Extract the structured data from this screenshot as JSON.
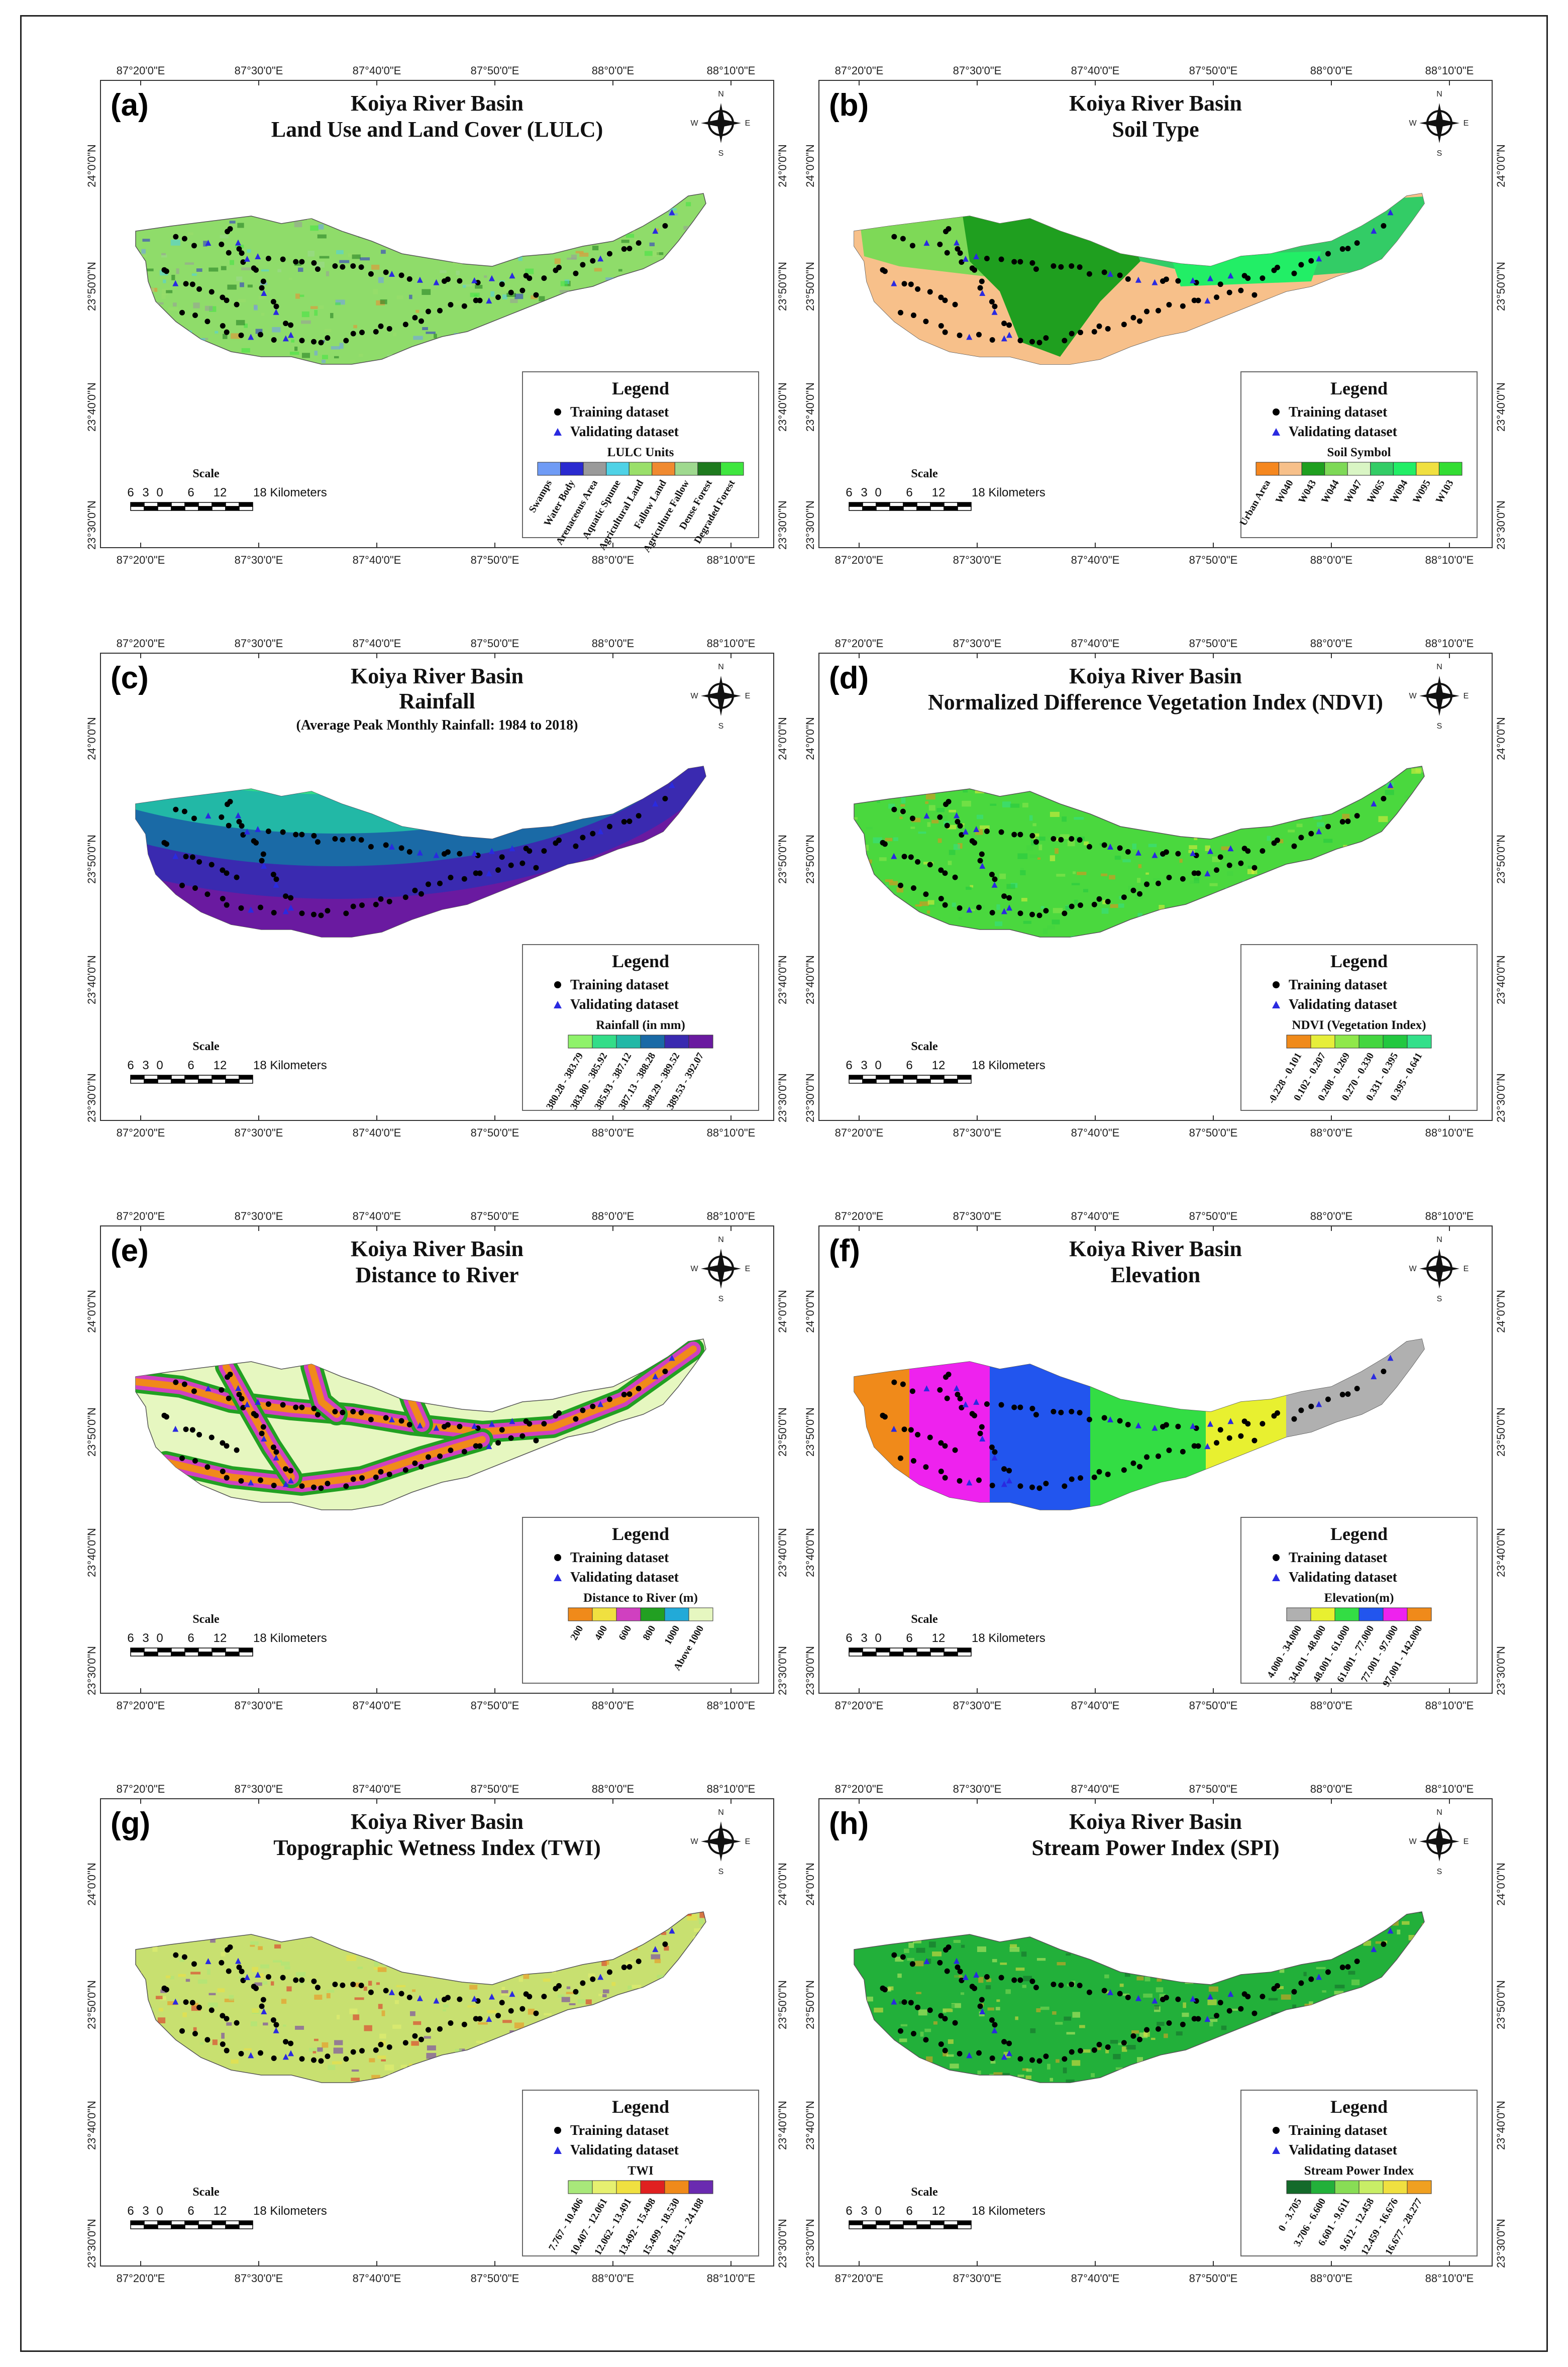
{
  "figure": {
    "common_title": "Koiya River Basin",
    "top_lon_labels": [
      "87°20'0\"E",
      "87°30'0\"E",
      "87°40'0\"E",
      "87°50'0\"E",
      "88°0'0\"E",
      "88°10'0\"E"
    ],
    "bottom_lon_labels": [
      "87°20'0\"E",
      "87°30'0\"E",
      "87°40'0\"E",
      "87°50'0\"E",
      "88°0'0\"E",
      "88°10'0\"E"
    ],
    "lat_labels": [
      "24°0'0\"N",
      "23°50'0\"N",
      "23°40'0\"N",
      "23°30'0\"N"
    ],
    "scale_word": "Scale",
    "scale_ticks": [
      "6",
      "3",
      "0",
      "6",
      "12",
      "18 Kilometers"
    ],
    "compass": {
      "n": "N",
      "s": "S",
      "e": "E",
      "w": "W"
    },
    "legend_word": "Legend",
    "training_label": "Training dataset",
    "validating_label": "Validating dataset"
  },
  "panels": [
    {
      "label": "(a)",
      "subtitle": "Land Use and Land Cover (LULC)",
      "subtitle2": "",
      "class_title": "LULC Units",
      "classes": [
        "Swamps",
        "Water Body",
        "Arenaceous Area",
        "Aquatic Spume",
        "Agricultural Land",
        "Fallow Land",
        "Agriculture Fallow",
        "Dense Forest",
        "Degraded Forest"
      ],
      "colors": [
        "#6f9bf5",
        "#2a2ad0",
        "#9a9a9a",
        "#4fd2e6",
        "#9adf6a",
        "#f08a30",
        "#9fd98f",
        "#1e7a1e",
        "#3fe63f"
      ],
      "basin_fill": "#8fdc6a"
    },
    {
      "label": "(b)",
      "subtitle": "Soil Type",
      "subtitle2": "",
      "class_title": "Soil Symbol",
      "classes": [
        "Urban Area",
        "W040",
        "W043",
        "W044",
        "W047",
        "W065",
        "W094",
        "W095",
        "W103"
      ],
      "colors": [
        "#f5871f",
        "#f7c08a",
        "#1f9f1f",
        "#7ed957",
        "#d9f5c4",
        "#33cc66",
        "#22ee66",
        "#f0e040",
        "#33dd33"
      ],
      "basin_fill": "#f7c08a"
    },
    {
      "label": "(c)",
      "subtitle": "Rainfall",
      "subtitle2": "(Average Peak Monthly Rainfall: 1984 to 2018)",
      "class_title": "Rainfall (in mm)",
      "classes": [
        "380.28 - 383.79",
        "383.80 - 385.92",
        "385.93 - 387.12",
        "387.13 - 388.28",
        "388.29 - 389.52",
        "389.53 - 392.07"
      ],
      "colors": [
        "#8ff26a",
        "#33dd88",
        "#22b8a6",
        "#1a6aa6",
        "#3a2ab0",
        "#6a1aa0"
      ],
      "basin_fill": "#22b8a6"
    },
    {
      "label": "(d)",
      "subtitle": "Normalized Difference Vegetation Index (NDVI)",
      "subtitle2": "",
      "class_title": "NDVI (Vegetation Index)",
      "classes": [
        "-0.228 - 0.101",
        "0.102 - 0.207",
        "0.208 - 0.269",
        "0.270 - 0.330",
        "0.331 - 0.395",
        "0.395 - 0.641"
      ],
      "colors": [
        "#f08a1a",
        "#e6ee3a",
        "#8fe84a",
        "#44d640",
        "#22c840",
        "#33e08a"
      ],
      "basin_fill": "#4ad83e"
    },
    {
      "label": "(e)",
      "subtitle": "Distance to River",
      "subtitle2": "",
      "class_title": "Distance to River (m)",
      "classes": [
        "200",
        "400",
        "600",
        "800",
        "1000",
        "Above 1000"
      ],
      "colors": [
        "#f08a1a",
        "#f0e040",
        "#d040c0",
        "#22a022",
        "#22aad8",
        "#e6f7c0"
      ],
      "basin_fill": "#e6f7c0"
    },
    {
      "label": "(f)",
      "subtitle": "Elevation",
      "subtitle2": "",
      "class_title": "Elevation(m)",
      "classes": [
        "4.000 - 34.000",
        "34.001 - 48.000",
        "48.001 - 61.000",
        "61.001 - 77.000",
        "77.001 - 97.000",
        "97.001 - 142.000"
      ],
      "colors": [
        "#b0b0b0",
        "#e8f030",
        "#33dd44",
        "#2255ee",
        "#ee22ee",
        "#f08a1a"
      ],
      "basin_fill": "#33dd44"
    },
    {
      "label": "(g)",
      "subtitle": "Topographic Wetness Index (TWI)",
      "subtitle2": "",
      "class_title": "TWI",
      "classes": [
        "7.767 - 10.406",
        "10.407 - 12.061",
        "12.062 - 13.491",
        "13.492 - 15.498",
        "15.499 - 18.530",
        "18.531 - 24.188"
      ],
      "colors": [
        "#a8e87a",
        "#e6f070",
        "#f0e040",
        "#e02020",
        "#f08a1a",
        "#6a2ab0"
      ],
      "basin_fill": "#c8e070"
    },
    {
      "label": "(h)",
      "subtitle": "Stream Power Index (SPI)",
      "subtitle2": "",
      "class_title": "Stream Power Index",
      "classes": [
        "0 - 3.705",
        "3.706 - 6.600",
        "6.601 - 9.611",
        "9.612 - 12.458",
        "12.459 - 16.676",
        "16.677 - 28.277"
      ],
      "colors": [
        "#146a2a",
        "#22b03a",
        "#88dd55",
        "#c8ee66",
        "#f0e040",
        "#f0a020"
      ],
      "basin_fill": "#22b03a"
    }
  ]
}
